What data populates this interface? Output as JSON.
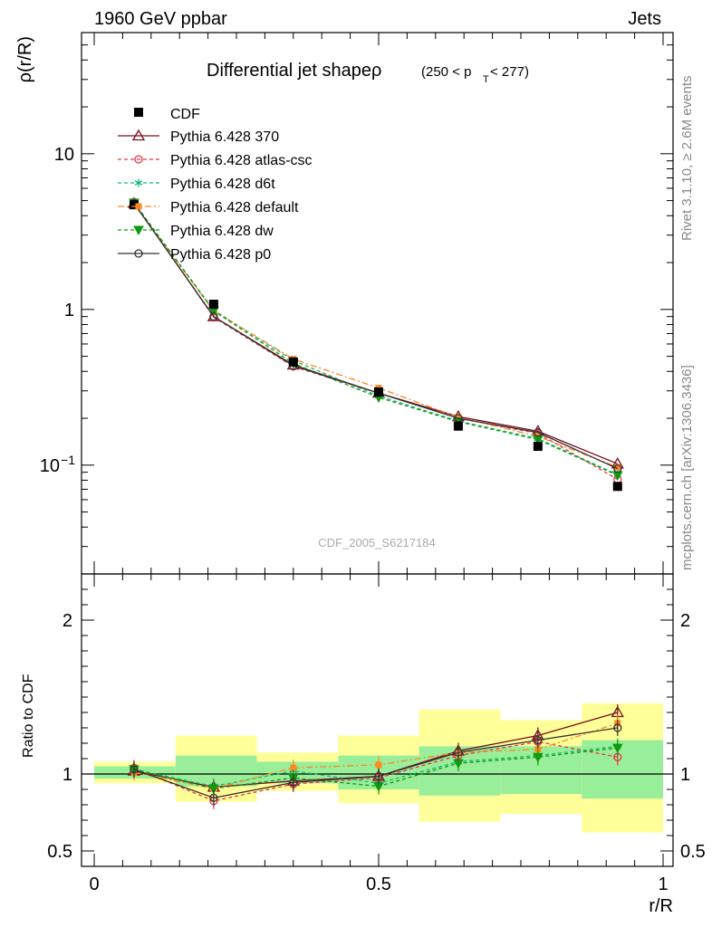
{
  "header": {
    "energy_label": "1960 GeV ppbar",
    "process_label": "Jets",
    "side_label_rivet": "Rivet 3.1.10, ≥ 2.6M events",
    "side_label_source": "mcplots.cern.ch [arXiv:1306.3436]"
  },
  "chart_data": [
    {
      "type": "line",
      "title": "Differential jet shapeρ",
      "title_cut": "(250 < p",
      "title_cut_sub": "T",
      "title_cut_end": " < 277)",
      "ylabel": "ρ(r/R)",
      "xlabel": "r/R",
      "analysis_id": "CDF_2005_S6217184",
      "yscale": "log",
      "ylim": [
        0.02,
        60
      ],
      "xlim": [
        0,
        1
      ],
      "y_ticks": [
        {
          "v": 10,
          "label": "10"
        },
        {
          "v": 1,
          "label": "1"
        },
        {
          "v": 0.1,
          "label": "10",
          "exp": "−1"
        }
      ],
      "legend_position": "top-left",
      "x": [
        0.07,
        0.21,
        0.35,
        0.5,
        0.64,
        0.78,
        0.92
      ],
      "data": {
        "name": "CDF",
        "color": "#000000",
        "values": [
          4.7,
          1.08,
          0.46,
          0.295,
          0.178,
          0.132,
          0.073
        ]
      },
      "series": [
        {
          "name": "Pythia 6.428 370",
          "color": "#7b0d1e",
          "dash": "",
          "marker": "triangle-open",
          "values": [
            4.8,
            0.9,
            0.44,
            0.29,
            0.205,
            0.165,
            0.102
          ]
        },
        {
          "name": "Pythia 6.428 atlas-csc",
          "color": "#ee3344",
          "dash": "4,3",
          "marker": "circle-open",
          "values": [
            4.9,
            0.89,
            0.43,
            0.29,
            0.2,
            0.16,
            0.081
          ]
        },
        {
          "name": "Pythia 6.428 d6t",
          "color": "#11bb77",
          "dash": "4,3",
          "marker": "asterisk",
          "values": [
            4.85,
            0.99,
            0.47,
            0.278,
            0.192,
            0.148,
            0.087
          ]
        },
        {
          "name": "Pythia 6.428 default",
          "color": "#ff8822",
          "dash": "7,3,2,3",
          "marker": "square",
          "values": [
            4.75,
            0.98,
            0.48,
            0.313,
            0.203,
            0.153,
            0.097
          ]
        },
        {
          "name": "Pythia 6.428 dw",
          "color": "#119911",
          "dash": "4,3",
          "marker": "triangle-down",
          "values": [
            4.85,
            0.98,
            0.45,
            0.272,
            0.19,
            0.146,
            0.086
          ]
        },
        {
          "name": "Pythia 6.428 p0",
          "color": "#333333",
          "dash": "",
          "marker": "circle-open",
          "values": [
            4.8,
            0.9,
            0.435,
            0.29,
            0.2,
            0.162,
            0.095
          ]
        }
      ]
    },
    {
      "type": "line",
      "ylabel": "Ratio to CDF",
      "xlabel": "r/R",
      "ylim": [
        0.4,
        2.3
      ],
      "xlim": [
        0,
        1
      ],
      "y_ticks": [
        {
          "v": 2,
          "label": "2"
        },
        {
          "v": 1,
          "label": "1"
        },
        {
          "v": 0.5,
          "label": "0.5"
        }
      ],
      "x_ticks": [
        {
          "v": 0,
          "label": "0"
        },
        {
          "v": 0.5,
          "label": "0.5"
        },
        {
          "v": 1,
          "label": "1"
        }
      ],
      "reference_line": 1,
      "bands": [
        {
          "x0": 0.0,
          "x1": 0.143,
          "stat": [
            0.97,
            1.05
          ],
          "tot": [
            0.94,
            1.08
          ]
        },
        {
          "x0": 0.143,
          "x1": 0.286,
          "stat": [
            0.92,
            1.12
          ],
          "tot": [
            0.82,
            1.25
          ]
        },
        {
          "x0": 0.286,
          "x1": 0.429,
          "stat": [
            0.94,
            1.08
          ],
          "tot": [
            0.89,
            1.14
          ]
        },
        {
          "x0": 0.429,
          "x1": 0.571,
          "stat": [
            0.9,
            1.12
          ],
          "tot": [
            0.81,
            1.25
          ]
        },
        {
          "x0": 0.571,
          "x1": 0.714,
          "stat": [
            0.86,
            1.18
          ],
          "tot": [
            0.69,
            1.42
          ]
        },
        {
          "x0": 0.714,
          "x1": 0.857,
          "stat": [
            0.87,
            1.18
          ],
          "tot": [
            0.74,
            1.35
          ]
        },
        {
          "x0": 0.857,
          "x1": 1.0,
          "stat": [
            0.84,
            1.22
          ],
          "tot": [
            0.62,
            1.46
          ]
        }
      ],
      "x": [
        0.07,
        0.21,
        0.35,
        0.5,
        0.64,
        0.78,
        0.92
      ],
      "series": [
        {
          "name": "Pythia 6.428 370",
          "values": [
            1.02,
            0.915,
            0.955,
            0.985,
            1.15,
            1.25,
            1.4
          ]
        },
        {
          "name": "Pythia 6.428 atlas-csc",
          "values": [
            1.04,
            0.825,
            0.935,
            0.975,
            1.12,
            1.21,
            1.11
          ]
        },
        {
          "name": "Pythia 6.428 d6t",
          "values": [
            1.03,
            0.92,
            1.02,
            0.94,
            1.08,
            1.12,
            1.18
          ]
        },
        {
          "name": "Pythia 6.428 default",
          "values": [
            1.01,
            0.905,
            1.04,
            1.06,
            1.14,
            1.16,
            1.33
          ]
        },
        {
          "name": "Pythia 6.428 dw",
          "values": [
            1.03,
            0.905,
            0.975,
            0.92,
            1.07,
            1.11,
            1.17
          ]
        },
        {
          "name": "Pythia 6.428 p0",
          "values": [
            1.03,
            0.845,
            0.945,
            0.985,
            1.14,
            1.22,
            1.3
          ]
        }
      ]
    }
  ]
}
